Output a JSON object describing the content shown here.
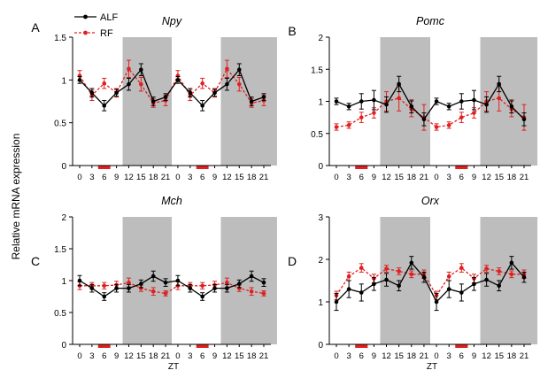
{
  "y_axis_title": "Relative mRNA expression",
  "legend": [
    {
      "name": "ALF",
      "color": "#000000",
      "dashed": false
    },
    {
      "name": "RF",
      "color": "#e02020",
      "dashed": true
    }
  ],
  "colors": {
    "dark_band": "#bdbdbd",
    "light_bar": "#e02020",
    "alf": "#000000",
    "rf": "#e02020"
  },
  "chart_data": [
    {
      "type": "line",
      "panel_label": "A",
      "title": "Npy",
      "xlabel": "",
      "ylabel": "Relative mRNA expression",
      "categories": [
        "0",
        "3",
        "6",
        "9",
        "12",
        "15",
        "18",
        "21",
        "0",
        "3",
        "6",
        "9",
        "12",
        "15",
        "18",
        "21"
      ],
      "ylim": [
        0,
        1.5
      ],
      "yticks": [
        "0",
        "0.5",
        "1",
        "1.5"
      ],
      "series": [
        {
          "name": "ALF",
          "values": [
            1.0,
            0.85,
            0.7,
            0.85,
            0.95,
            1.12,
            0.75,
            0.8,
            1.0,
            0.85,
            0.7,
            0.85,
            0.95,
            1.12,
            0.75,
            0.8
          ],
          "errors": [
            0.04,
            0.05,
            0.06,
            0.04,
            0.07,
            0.07,
            0.05,
            0.04,
            0.04,
            0.05,
            0.06,
            0.04,
            0.07,
            0.07,
            0.05,
            0.04
          ]
        },
        {
          "name": "RF",
          "values": [
            1.05,
            0.82,
            0.96,
            0.85,
            1.13,
            0.95,
            0.73,
            0.76,
            1.05,
            0.82,
            0.96,
            0.85,
            1.13,
            0.95,
            0.73,
            0.76
          ],
          "errors": [
            0.06,
            0.06,
            0.06,
            0.05,
            0.1,
            0.08,
            0.05,
            0.06,
            0.06,
            0.06,
            0.06,
            0.05,
            0.1,
            0.08,
            0.05,
            0.06
          ]
        }
      ]
    },
    {
      "type": "line",
      "panel_label": "B",
      "title": "Pomc",
      "xlabel": "",
      "ylabel": "Relative mRNA expression",
      "categories": [
        "0",
        "3",
        "6",
        "9",
        "12",
        "15",
        "18",
        "21",
        "0",
        "3",
        "6",
        "9",
        "12",
        "15",
        "18",
        "21"
      ],
      "ylim": [
        0,
        2
      ],
      "yticks": [
        "0",
        "0.5",
        "1",
        "1.5",
        "2"
      ],
      "series": [
        {
          "name": "ALF",
          "values": [
            1.0,
            0.92,
            1.0,
            1.02,
            0.95,
            1.27,
            0.92,
            0.72,
            1.0,
            0.92,
            1.0,
            1.02,
            0.95,
            1.27,
            0.92,
            0.72
          ],
          "errors": [
            0.05,
            0.05,
            0.12,
            0.15,
            0.12,
            0.12,
            0.1,
            0.1,
            0.05,
            0.05,
            0.12,
            0.15,
            0.12,
            0.12,
            0.1,
            0.1
          ]
        },
        {
          "name": "RF",
          "values": [
            0.6,
            0.63,
            0.75,
            0.82,
            1.0,
            1.05,
            0.88,
            0.75,
            0.6,
            0.63,
            0.75,
            0.82,
            1.0,
            1.05,
            0.88,
            0.75
          ],
          "errors": [
            0.05,
            0.05,
            0.08,
            0.08,
            0.15,
            0.2,
            0.12,
            0.2,
            0.05,
            0.05,
            0.08,
            0.08,
            0.15,
            0.2,
            0.12,
            0.2
          ]
        }
      ]
    },
    {
      "type": "line",
      "panel_label": "C",
      "title": "Mch",
      "xlabel": "ZT",
      "ylabel": "Relative mRNA expression",
      "categories": [
        "0",
        "3",
        "6",
        "9",
        "12",
        "15",
        "18",
        "21",
        "0",
        "3",
        "6",
        "9",
        "12",
        "15",
        "18",
        "21"
      ],
      "ylim": [
        0,
        2
      ],
      "yticks": [
        "0",
        "0.5",
        "1",
        "1.5",
        "2"
      ],
      "series": [
        {
          "name": "ALF",
          "values": [
            1.0,
            0.88,
            0.75,
            0.88,
            0.88,
            0.95,
            1.07,
            0.97,
            1.0,
            0.88,
            0.75,
            0.88,
            0.88,
            0.95,
            1.07,
            0.97
          ],
          "errors": [
            0.08,
            0.06,
            0.06,
            0.06,
            0.06,
            0.06,
            0.08,
            0.06,
            0.08,
            0.06,
            0.06,
            0.06,
            0.06,
            0.06,
            0.08,
            0.06
          ]
        },
        {
          "name": "RF",
          "values": [
            0.92,
            0.92,
            0.92,
            0.93,
            0.97,
            0.88,
            0.83,
            0.8,
            0.92,
            0.92,
            0.92,
            0.93,
            0.97,
            0.88,
            0.83,
            0.8
          ],
          "errors": [
            0.06,
            0.05,
            0.05,
            0.06,
            0.07,
            0.05,
            0.06,
            0.04,
            0.06,
            0.05,
            0.05,
            0.06,
            0.07,
            0.05,
            0.06,
            0.04
          ]
        }
      ]
    },
    {
      "type": "line",
      "panel_label": "D",
      "title": "Orx",
      "xlabel": "ZT",
      "ylabel": "Relative mRNA expression",
      "categories": [
        "0",
        "3",
        "6",
        "9",
        "12",
        "15",
        "18",
        "21",
        "0",
        "3",
        "6",
        "9",
        "12",
        "15",
        "18",
        "21"
      ],
      "ylim": [
        0,
        3
      ],
      "yticks": [
        "0",
        "1",
        "2",
        "3"
      ],
      "series": [
        {
          "name": "ALF",
          "values": [
            1.0,
            1.3,
            1.22,
            1.42,
            1.52,
            1.38,
            1.92,
            1.58,
            1.0,
            1.3,
            1.22,
            1.42,
            1.52,
            1.38,
            1.92,
            1.58
          ],
          "errors": [
            0.2,
            0.2,
            0.2,
            0.15,
            0.15,
            0.12,
            0.15,
            0.12,
            0.2,
            0.2,
            0.2,
            0.15,
            0.15,
            0.12,
            0.15,
            0.12
          ]
        },
        {
          "name": "RF",
          "values": [
            1.15,
            1.6,
            1.8,
            1.55,
            1.78,
            1.72,
            1.65,
            1.65,
            1.15,
            1.6,
            1.8,
            1.55,
            1.78,
            1.72,
            1.65,
            1.65
          ],
          "errors": [
            0.1,
            0.1,
            0.1,
            0.1,
            0.08,
            0.08,
            0.08,
            0.1,
            0.1,
            0.1,
            0.1,
            0.1,
            0.08,
            0.08,
            0.08,
            0.1
          ]
        }
      ]
    }
  ]
}
